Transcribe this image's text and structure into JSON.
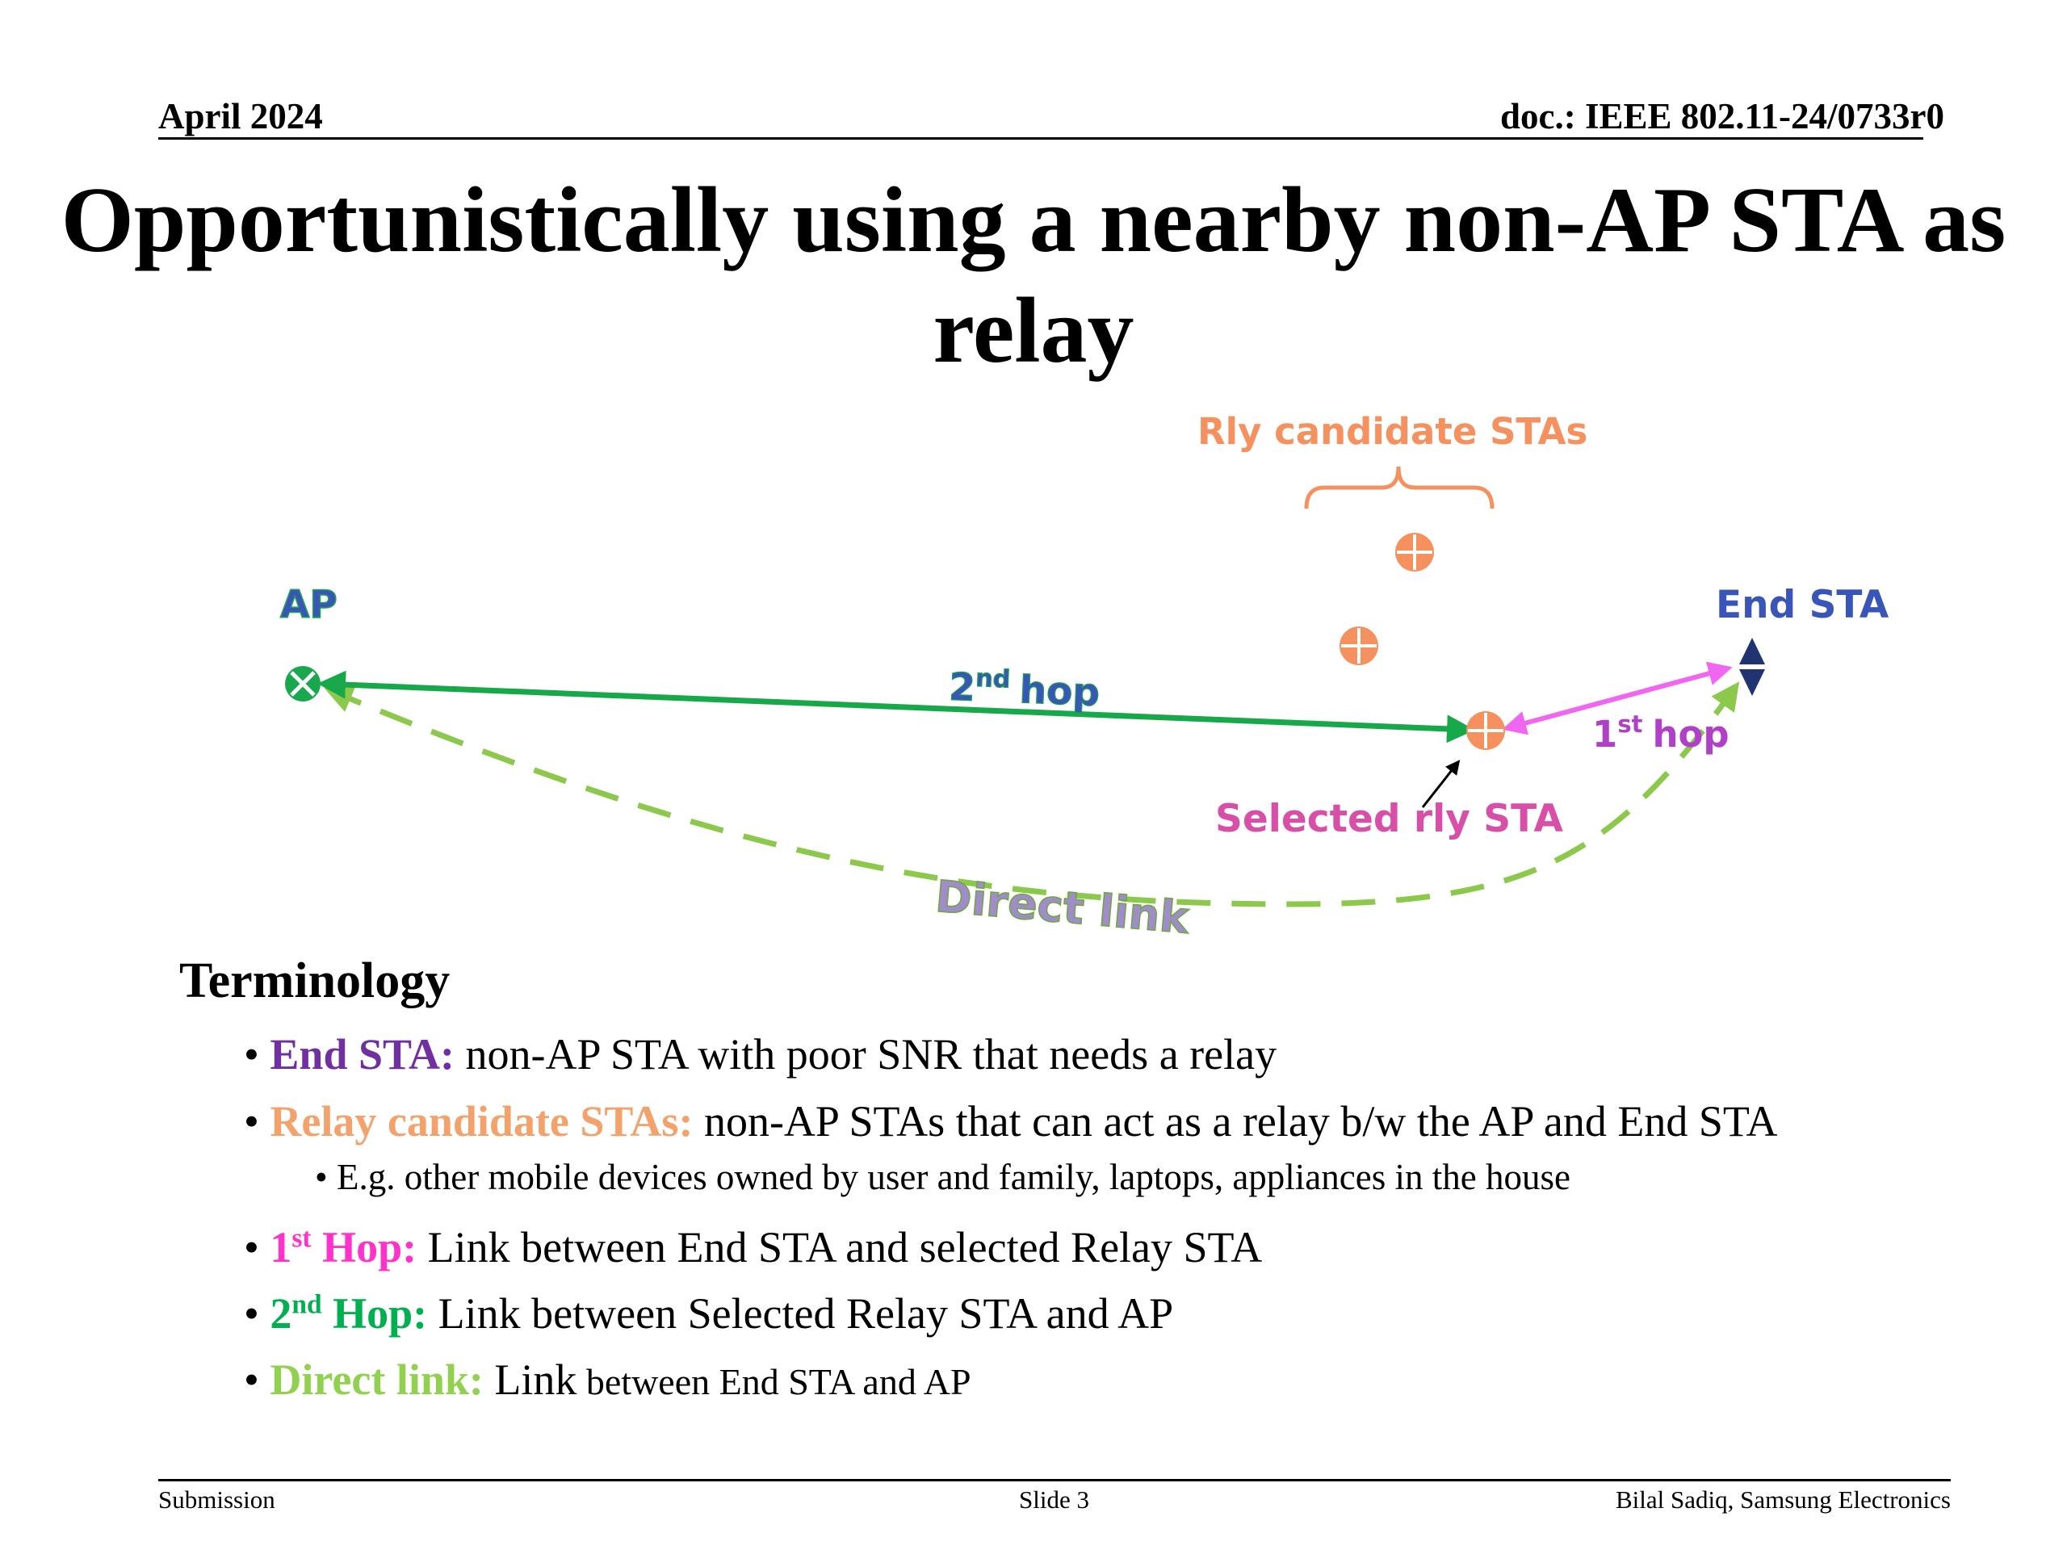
{
  "header": {
    "date": "April 2024",
    "doc": "doc.: IEEE 802.11-24/0733r0"
  },
  "title": "Opportunistically using a nearby non-AP STA as relay",
  "diagram": {
    "ap_label": "AP",
    "end_sta_label": "End STA",
    "rly_candidate_label": "Rly candidate STAs",
    "selected_rly_label": "Selected rly STA",
    "hop2_num": "2",
    "hop2_sup": "nd",
    "hop2_word": "hop",
    "hop1_num": "1",
    "hop1_sup": "st",
    "hop1_word": "hop",
    "direct_link_label": "Direct link",
    "colors": {
      "ap": "#1aa84f",
      "hop2": "#17a84a",
      "hop1": "#f066f0",
      "direct": "#8cc84b",
      "relay": "#f4915e",
      "end_sta": "#1f3470",
      "label_blue": "#3a55b8",
      "label_purple": "#b040c8",
      "label_pink": "#d84fa8"
    }
  },
  "terminology": {
    "heading": "Terminology",
    "items": [
      {
        "term": "End STA:",
        "desc": " non-AP STA with poor SNR that needs a relay",
        "color": "#7030a0"
      },
      {
        "term": "Relay candidate STAs:",
        "desc": " non-AP STAs that can act as a relay b/w the AP and End STA",
        "color": "#f4a26c"
      },
      {
        "term_num": "1",
        "term_sup": "st",
        "term_rest": " Hop:",
        "desc": " Link between End STA and selected Relay STA",
        "color": "#ff33cc"
      },
      {
        "term_num": "2",
        "term_sup": "nd",
        "term_rest": " Hop:",
        "desc": " Link between Selected Relay STA and AP",
        "color": "#00b050"
      },
      {
        "term": "Direct link:",
        "desc_big": " Link",
        "desc_small": " between End STA and AP",
        "color": "#92d050"
      }
    ],
    "sub_item": "E.g. other mobile devices owned by user and family, laptops, appliances in the house"
  },
  "footer": {
    "left": "Submission",
    "center": "Slide 3",
    "right": "Bilal Sadiq, Samsung Electronics"
  }
}
